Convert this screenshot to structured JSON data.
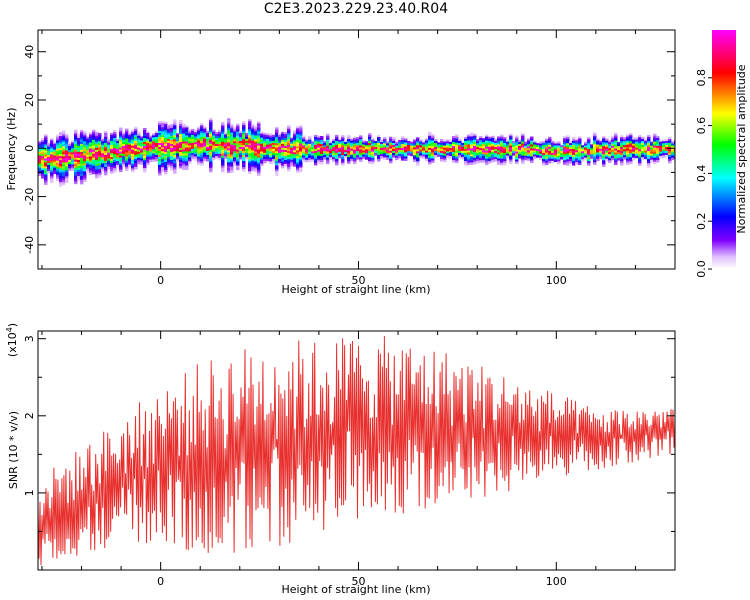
{
  "title": "C2E3.2023.229.23.40.R04",
  "chart_data": [
    {
      "type": "heatmap",
      "xlabel": "Height of straight line (km)",
      "ylabel": "Frequency (Hz)",
      "xlim": [
        -31,
        130
      ],
      "ylim": [
        -50,
        49
      ],
      "xticks": [
        0,
        50,
        100
      ],
      "yticks": [
        -40,
        -20,
        0,
        20,
        40
      ],
      "colorbar": {
        "label": "Normalized spectral amplitude",
        "range": [
          0.0,
          1.0
        ],
        "ticks": [
          0.0,
          0.2,
          0.4,
          0.6,
          0.8
        ],
        "colors": [
          "#ffffff",
          "#8000ff",
          "#0000ff",
          "#00ffff",
          "#00ff00",
          "#ffff00",
          "#ff0000",
          "#ff00ff"
        ]
      },
      "center_frequency_curve": {
        "x": [
          -31,
          -25,
          -20,
          -15,
          -10,
          -5,
          0,
          5,
          10,
          15,
          20,
          25,
          30,
          35,
          40,
          50,
          60,
          70,
          80,
          90,
          100,
          110,
          120,
          130
        ],
        "y": [
          -4,
          -3.5,
          -2.5,
          -1.5,
          -0.5,
          0.5,
          1,
          1.5,
          2,
          1.5,
          1,
          0.5,
          0,
          0,
          0,
          0,
          0,
          0,
          0,
          0,
          -1,
          -0.5,
          0,
          0
        ]
      },
      "band_halfwidth_hz": 3
    },
    {
      "type": "line",
      "xlabel": "Height of straight line (km)",
      "ylabel": "SNR (10 * v/v)",
      "yscale_label": "(x10",
      "yscale_exp": "4",
      "scale_factor": 10000,
      "xlim": [
        -31,
        130
      ],
      "ylim": [
        0,
        3.1
      ],
      "xticks": [
        0,
        50,
        100
      ],
      "yticks": [
        1,
        2,
        3
      ],
      "color": "#e8312f",
      "envelope": {
        "x": [
          -31,
          -20,
          -10,
          0,
          10,
          20,
          30,
          40,
          50,
          60,
          70,
          80,
          90,
          100,
          110,
          120,
          130
        ],
        "upper": [
          1.2,
          1.6,
          2.0,
          2.4,
          2.7,
          2.9,
          3.0,
          3.0,
          3.1,
          3.0,
          2.9,
          2.7,
          2.5,
          2.3,
          2.1,
          2.1,
          2.15
        ],
        "lower": [
          0.0,
          0.2,
          0.3,
          0.3,
          0.2,
          0.2,
          0.3,
          0.4,
          0.6,
          0.7,
          0.8,
          0.9,
          1.0,
          1.2,
          1.3,
          1.4,
          1.5
        ]
      }
    }
  ]
}
